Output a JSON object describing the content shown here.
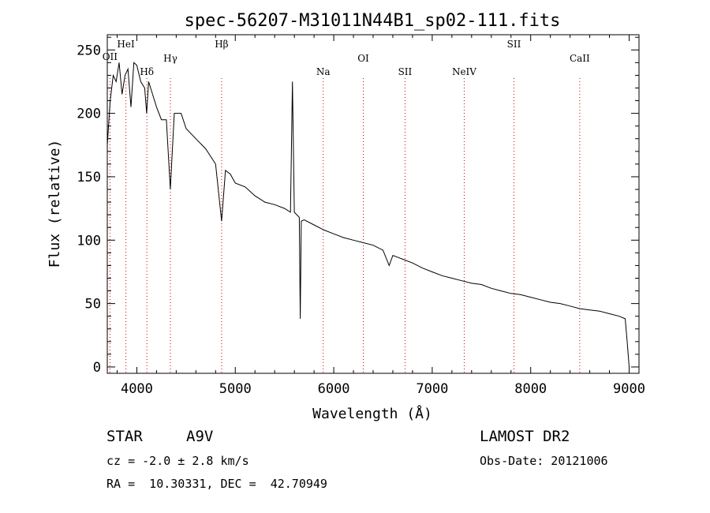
{
  "chart_data": {
    "type": "line",
    "title": "spec-56207-M31011N44B1_sp02-111.fits",
    "xlabel": "Wavelength (Å)",
    "ylabel": "Flux (relative)",
    "xlim": [
      3700,
      9100
    ],
    "ylim": [
      -5,
      262
    ],
    "xticks": [
      4000,
      5000,
      6000,
      7000,
      8000,
      9000
    ],
    "xtick_labels": [
      "4000",
      "5000",
      "6000",
      "7000",
      "8000",
      "9000"
    ],
    "yticks": [
      0,
      50,
      100,
      150,
      200,
      250
    ],
    "ytick_labels": [
      "0",
      "50",
      "100",
      "150",
      "200",
      "250"
    ],
    "grid": false,
    "line_color": "#000000",
    "line_marker_color": "#cc0000",
    "series": [
      {
        "x": [
          3700,
          3730,
          3760,
          3790,
          3820,
          3850,
          3880,
          3910,
          3940,
          3970,
          4000,
          4040,
          4080,
          4100,
          4120,
          4160,
          4200,
          4250,
          4300,
          4340,
          4380,
          4450,
          4500,
          4600,
          4700,
          4800,
          4861,
          4900,
          4950,
          5000,
          5100,
          5200,
          5300,
          5400,
          5500,
          5560,
          5580,
          5600,
          5650,
          5660,
          5670,
          5700,
          5800,
          5900,
          6000,
          6100,
          6200,
          6300,
          6400,
          6500,
          6563,
          6600,
          6700,
          6800,
          6900,
          7000,
          7100,
          7200,
          7300,
          7400,
          7500,
          7600,
          7700,
          7800,
          7900,
          8000,
          8100,
          8200,
          8300,
          8400,
          8500,
          8600,
          8700,
          8800,
          8900,
          8960,
          8980,
          9000
        ],
        "y": [
          175,
          210,
          230,
          225,
          240,
          215,
          230,
          235,
          205,
          240,
          238,
          225,
          220,
          200,
          225,
          215,
          205,
          195,
          195,
          140,
          200,
          200,
          188,
          180,
          172,
          160,
          115,
          155,
          152,
          145,
          142,
          135,
          130,
          128,
          125,
          122,
          225,
          122,
          118,
          38,
          115,
          116,
          112,
          108,
          105,
          102,
          100,
          98,
          96,
          92,
          80,
          88,
          85,
          82,
          78,
          75,
          72,
          70,
          68,
          66,
          65,
          62,
          60,
          58,
          57,
          55,
          53,
          51,
          50,
          48,
          46,
          45,
          44,
          42,
          40,
          38,
          20,
          0
        ]
      }
    ],
    "line_markers": [
      {
        "label": "OII",
        "x": 3727
      },
      {
        "label": "HeI",
        "x": 3889
      },
      {
        "label": "Hδ",
        "x": 4102
      },
      {
        "label": "Hγ",
        "x": 4341
      },
      {
        "label": "Hβ",
        "x": 4861
      },
      {
        "label": "Na",
        "x": 5893
      },
      {
        "label": "OI",
        "x": 6300
      },
      {
        "label": "SII",
        "x": 6724
      },
      {
        "label": "NeIV",
        "x": 7325
      },
      {
        "label": "SII",
        "x": 7830
      },
      {
        "label": "CaII",
        "x": 8498
      }
    ]
  },
  "info": {
    "object_type": "STAR",
    "subclass": "A9V",
    "survey": "LAMOST DR2",
    "cz_line": "cz = -2.0 ± 2.8 km/s",
    "obs_date": "Obs-Date: 20121006",
    "coords": "RA =  10.30331, DEC =  42.70949"
  }
}
